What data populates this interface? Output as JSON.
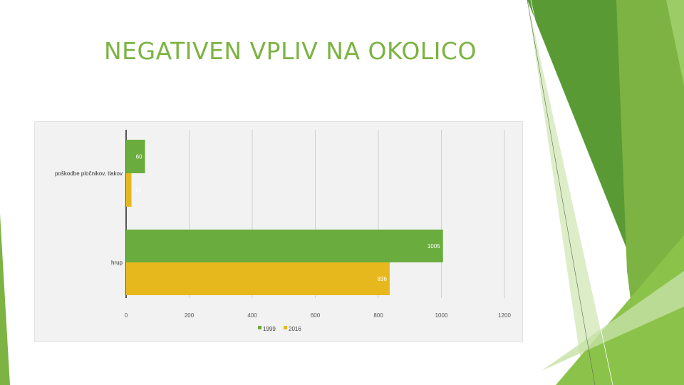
{
  "slide": {
    "title": "NEGATIVEN VPLIV NA OKOLICO"
  },
  "colors": {
    "series_1999": "#6aac3e",
    "series_2016": "#e6b81e",
    "title": "#7cb342"
  },
  "chart_data": {
    "type": "bar",
    "orientation": "horizontal",
    "title": "",
    "xlabel": "",
    "ylabel": "",
    "categories": [
      "poškodbe pločnikov, tlakov",
      "hrup"
    ],
    "series": [
      {
        "name": "1999",
        "values": [
          60,
          1005
        ]
      },
      {
        "name": "2016",
        "values": [
          17,
          836
        ]
      }
    ],
    "data_labels": [
      [
        "60",
        "17"
      ],
      [
        "1005",
        "836"
      ]
    ],
    "xlim": [
      0,
      1200
    ],
    "xticks": [
      "0",
      "200",
      "400",
      "600",
      "800",
      "1000",
      "1200"
    ],
    "grid": true,
    "legend": "bottom"
  }
}
